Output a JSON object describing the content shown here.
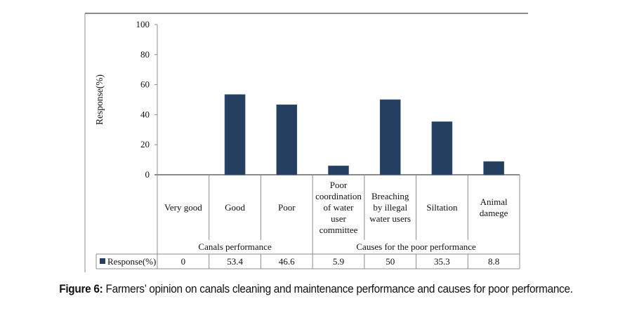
{
  "chart_data": {
    "type": "bar",
    "title": "",
    "xlabel": "",
    "ylabel": "Response(%)",
    "ylim": [
      0,
      100
    ],
    "yticks": [
      "0",
      "20",
      "40",
      "60",
      "80",
      "100"
    ],
    "grid": false,
    "legend_placement": "data-table-left",
    "bar_color": "#243f60",
    "groups": [
      {
        "label": "Canals performance",
        "categories": [
          0,
          1,
          2
        ]
      },
      {
        "label": "Causes for the poor performance",
        "categories": [
          3,
          4,
          5,
          6
        ]
      }
    ],
    "categories": [
      [
        "Very good"
      ],
      [
        "Good"
      ],
      [
        "Poor"
      ],
      [
        "Poor",
        "coordination",
        "of  water",
        "user",
        "committee"
      ],
      [
        "Breaching",
        "by illegal",
        "water users"
      ],
      [
        "Siltation"
      ],
      [
        "Animal",
        "damege"
      ]
    ],
    "series": [
      {
        "name": "Response(%)",
        "values": [
          0,
          53.4,
          46.6,
          5.9,
          50,
          35.3,
          8.8
        ],
        "value_labels": [
          "0",
          "53.4",
          "46.6",
          "5.9",
          "50",
          "35.3",
          "8.8"
        ]
      }
    ]
  },
  "caption": {
    "label": "Figure 6:",
    "text": " Farmers’ opinion on canals cleaning and maintenance performance and causes for poor performance."
  }
}
